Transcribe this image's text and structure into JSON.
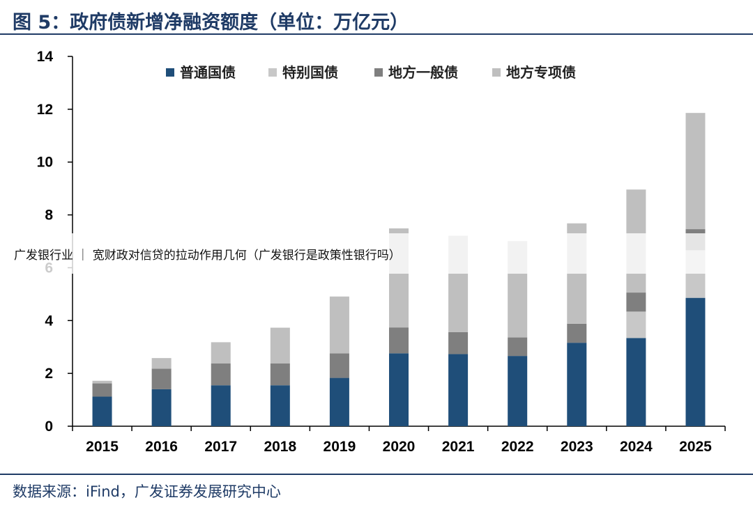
{
  "header": {
    "title": "图 5：政府债新增净融资额度（单位：万亿元）"
  },
  "watermark": {
    "text": "广发银行业 ｜ 宽财政对信贷的拉动作用几何（广发银行是政策性银行吗）"
  },
  "footer": {
    "source": "数据来源：iFind，广发证券发展研究中心"
  },
  "chart_data": {
    "type": "bar",
    "stacked": true,
    "title": "政府债新增净融资额度（单位：万亿元）",
    "xlabel": "",
    "ylabel": "",
    "ylim": [
      0,
      14
    ],
    "yticks": [
      0,
      2,
      4,
      6,
      8,
      10,
      12,
      14
    ],
    "categories": [
      "2015",
      "2016",
      "2017",
      "2018",
      "2019",
      "2020",
      "2021",
      "2022",
      "2023",
      "2024",
      "2025"
    ],
    "legend_position": "top",
    "series": [
      {
        "name": "普通国债",
        "color": "#1f4e79",
        "values": [
          1.12,
          1.4,
          1.55,
          1.55,
          1.83,
          2.76,
          2.73,
          2.66,
          3.16,
          3.34,
          4.86
        ]
      },
      {
        "name": "特别国债",
        "color": "#c8c8c8",
        "values": [
          0,
          0,
          0,
          0,
          0,
          0,
          0,
          0,
          0,
          1.0,
          1.8
        ]
      },
      {
        "name": "地方一般债",
        "color": "#7f7f7f",
        "values": [
          0.5,
          0.78,
          0.83,
          0.83,
          0.93,
          0.98,
          0.83,
          0.7,
          0.72,
          0.72,
          0.8
        ]
      },
      {
        "name": "地方专项债",
        "color": "#bfbfbf",
        "values": [
          0.1,
          0.4,
          0.8,
          1.35,
          2.15,
          3.75,
          3.65,
          3.65,
          3.8,
          3.9,
          4.4
        ]
      }
    ]
  }
}
